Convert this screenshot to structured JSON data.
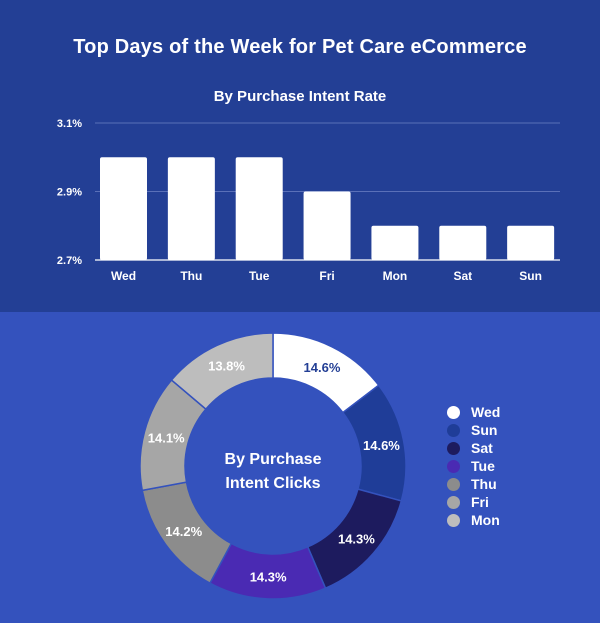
{
  "header": {
    "title": "Top Days of the Week for Pet Care eCommerce"
  },
  "chart_data": [
    {
      "type": "bar",
      "title": "By Purchase Intent Rate",
      "categories": [
        "Wed",
        "Thu",
        "Tue",
        "Fri",
        "Mon",
        "Sat",
        "Sun"
      ],
      "values": [
        3.0,
        3.0,
        3.0,
        2.9,
        2.8,
        2.8,
        2.8
      ],
      "ylim": [
        2.7,
        3.1
      ],
      "yticks": [
        2.7,
        2.9,
        3.1
      ],
      "ytick_labels": [
        "2.7%",
        "2.9%",
        "3.1%"
      ],
      "grid": true,
      "bar_color": "#ffffff"
    },
    {
      "type": "pie",
      "style": "donut",
      "title": "By Purchase Intent Clicks",
      "center_label_lines": [
        "By Purchase",
        "Intent Clicks"
      ],
      "slices": [
        {
          "label": "Wed",
          "value": 14.6,
          "text": "14.6%",
          "color": "#ffffff",
          "text_color": "#233f95"
        },
        {
          "label": "Sun",
          "value": 14.6,
          "text": "14.6%",
          "color": "#1f3d98",
          "text_color": "#ffffff"
        },
        {
          "label": "Sat",
          "value": 14.3,
          "text": "14.3%",
          "color": "#1d1b5e",
          "text_color": "#ffffff"
        },
        {
          "label": "Tue",
          "value": 14.3,
          "text": "14.3%",
          "color": "#4a2ab3",
          "text_color": "#ffffff"
        },
        {
          "label": "Thu",
          "value": 14.2,
          "text": "14.2%",
          "color": "#8c8c8c",
          "text_color": "#ffffff"
        },
        {
          "label": "Fri",
          "value": 14.1,
          "text": "14.1%",
          "color": "#a6a6a6",
          "text_color": "#ffffff"
        },
        {
          "label": "Mon",
          "value": 13.8,
          "text": "13.8%",
          "color": "#bdbdbd",
          "text_color": "#ffffff"
        }
      ],
      "legend": [
        {
          "label": "Wed",
          "color": "#ffffff"
        },
        {
          "label": "Sun",
          "color": "#1f3d98"
        },
        {
          "label": "Sat",
          "color": "#1d1b5e"
        },
        {
          "label": "Tue",
          "color": "#4a2ab3"
        },
        {
          "label": "Thu",
          "color": "#8c8c8c"
        },
        {
          "label": "Fri",
          "color": "#a6a6a6"
        },
        {
          "label": "Mon",
          "color": "#bdbdbd"
        }
      ],
      "legend_position": "right"
    }
  ]
}
